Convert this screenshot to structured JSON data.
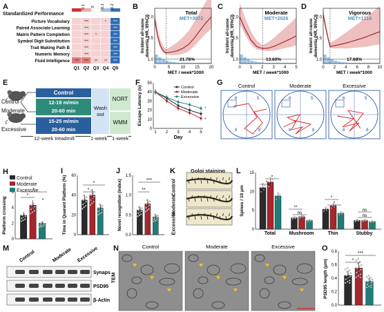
{
  "panels": {
    "A": {
      "label": "A",
      "title": "Standardized Performance",
      "rows": [
        "Picture Vocabulary",
        "Paired Associate Learning",
        "Matrix Pattern Completion",
        "Symbol Digit Substitution",
        "Trail Making Path B",
        "Numeric Memory",
        "Fluid Intelligence"
      ],
      "cols": [
        "Q1",
        "Q2",
        "Q3",
        "Q4",
        "Q5"
      ],
      "cells": [
        [
          "pink",
          "pink",
          "pink",
          "pink",
          "blue"
        ],
        [
          "pink",
          "pink",
          "pink",
          "pink",
          "blue"
        ],
        [
          "pink",
          "pink",
          "pink",
          "pink",
          "blue"
        ],
        [
          "pink",
          "pink",
          "pink",
          "pink",
          "blue"
        ],
        [
          "pink",
          "pink",
          "pink",
          "pink",
          "blue"
        ],
        [
          "pink",
          "pink",
          "pink",
          "pink",
          "blue"
        ],
        [
          "red",
          "red",
          "pink",
          "pink",
          "blue"
        ]
      ],
      "stars": [
        [
          "",
          "***",
          "",
          "*",
          "***"
        ],
        [
          "",
          "***",
          "",
          "",
          "***"
        ],
        [
          "",
          "***",
          "*",
          "",
          "***"
        ],
        [
          "",
          "***",
          "",
          "",
          "***"
        ],
        [
          "",
          "***",
          "",
          "",
          "***"
        ],
        [
          "",
          "***",
          "",
          "",
          "***"
        ],
        [
          "***",
          "***",
          "**",
          "**",
          "***"
        ]
      ],
      "legend_ticks": [
        "0.1",
        "0",
        "-0.1",
        "-0.2"
      ]
    },
    "B": {
      "label": "B",
      "title": "Total",
      "met": "MET=3972",
      "pct": "21.76%",
      "ylabel": "Incident all-cause dementia (HR, 95%CI)",
      "xlabel": "MET / week*1000",
      "xticks": [
        "0",
        "5",
        "10",
        "15",
        "20"
      ],
      "yticks": [
        "1.0",
        "1.5",
        "2.0"
      ]
    },
    "C": {
      "label": "C",
      "title": "Moderate",
      "met": "MET=2026",
      "pct": "13.60%",
      "ylabel": "Incident all-cause dementia (HR, 95%CI)",
      "xlabel": "MET / week*1000",
      "xticks": [
        "0",
        "1",
        "2",
        "3",
        "4",
        "5"
      ],
      "yticks": [
        "1.0",
        "1.5",
        "2.0"
      ]
    },
    "D": {
      "label": "D",
      "title": "Vigorous",
      "met": "MET=1216",
      "pct": "17.68%",
      "ylabel": "Incident all-cause dementia (HR, 95%CI)",
      "xlabel": "MET / week*1000",
      "xticks": [
        "0",
        "2",
        "4",
        "6",
        "8",
        "10"
      ],
      "yticks": [
        "1.0",
        "1.5",
        "2.0"
      ]
    },
    "E": {
      "label": "E",
      "groups": [
        "Control",
        "Moderate",
        "Excessive"
      ],
      "boxes": [
        "Control",
        "12-18 m/min",
        "20-60 min",
        "15-25 m/min",
        "20-60 min"
      ],
      "washout": "Wash out",
      "nort": "NORT",
      "wmm": "WMM",
      "timeline": [
        "12-week treadmill",
        "1-week",
        "1-week"
      ]
    },
    "F": {
      "label": "F",
      "ylabel": "Escape Latency (s)",
      "xlabel": "Day",
      "xticks": [
        "1",
        "2",
        "3",
        "4",
        "5"
      ],
      "yticks": [
        "0",
        "10",
        "20",
        "30",
        "40",
        "50"
      ],
      "legend": [
        "Control",
        "Moderate",
        "Excessive"
      ],
      "stars": [
        "*",
        "*"
      ]
    },
    "G": {
      "label": "G",
      "titles": [
        "Control",
        "Moderate",
        "Excessive"
      ]
    },
    "H": {
      "label": "H",
      "ylabel": "Platform crossing",
      "legend": [
        "Control",
        "Moderate",
        "Excessive"
      ],
      "yticks": [
        "0",
        "2",
        "4",
        "6"
      ],
      "stars": [
        "*",
        "*",
        "*"
      ]
    },
    "I": {
      "label": "I",
      "ylabel": "Time in Quarant Platform (%)",
      "yticks": [
        "0",
        "20",
        "40",
        "60"
      ],
      "stars": [
        "*",
        "*"
      ]
    },
    "J": {
      "label": "J",
      "ylabel": "Novel recognition (index)",
      "yticks": [
        "0.0",
        "0.5",
        "1.0",
        "1.5"
      ],
      "stars": [
        "**",
        "***"
      ]
    },
    "K": {
      "label": "K",
      "title": "Golgi staining",
      "rows": [
        "Control",
        "Moderate",
        "Excessive"
      ]
    },
    "L": {
      "label": "L",
      "ylabel": "Spines / 10 μm",
      "yticks": [
        "0",
        "5",
        "10",
        "15"
      ],
      "cats": [
        "Total",
        "Mushroom",
        "Thin",
        "Stubby"
      ],
      "stars": [
        "*",
        "*",
        "**",
        "ns",
        "*",
        "*",
        "ns",
        "ns"
      ]
    },
    "M": {
      "label": "M",
      "cols": [
        "Control",
        "Moderate",
        "Excessive"
      ],
      "bands": [
        "Synapsin",
        "PSD95",
        "β-Actin"
      ]
    },
    "N": {
      "label": "N",
      "titles": [
        "Control",
        "Moderate",
        "Excessive"
      ],
      "side": "TEM"
    },
    "O": {
      "label": "O",
      "ylabel": "PSD95 length (μm)",
      "yticks": [
        "0.0",
        "0.2",
        "0.4",
        "0.6",
        "0.8"
      ],
      "stars": [
        "*",
        "***"
      ]
    }
  },
  "chart_data": [
    {
      "type": "heatmap",
      "title": "Standardized Performance",
      "rows": [
        "Picture Vocabulary",
        "Paired Associate Learning",
        "Matrix Pattern Completion",
        "Symbol Digit Substitution",
        "Trail Making Path B",
        "Numeric Memory",
        "Fluid Intelligence"
      ],
      "columns": [
        "Q1",
        "Q2",
        "Q3",
        "Q4",
        "Q5"
      ],
      "color_range": [
        -0.2,
        0.1
      ]
    },
    {
      "type": "area",
      "title": "Total",
      "xlabel": "MET / week*1000",
      "ylabel": "Incident all-cause dementia (HR, 95%CI)",
      "x": [
        0,
        1,
        2,
        3,
        3.972,
        6,
        8,
        10,
        12,
        14,
        16,
        18,
        20
      ],
      "y": [
        1.95,
        1.55,
        1.32,
        1.2,
        1.15,
        1.17,
        1.2,
        1.26,
        1.35,
        1.5,
        1.68,
        1.85,
        2.0
      ],
      "vline": 3.972,
      "xlim": [
        0,
        20
      ],
      "ylim": [
        0.9,
        2.2
      ]
    },
    {
      "type": "area",
      "title": "Moderate",
      "xlabel": "MET / week*1000",
      "ylabel": "Incident all-cause dementia (HR, 95%CI)",
      "x": [
        0,
        0.5,
        1,
        1.5,
        2.026,
        2.5,
        3,
        3.5,
        4,
        4.5,
        5
      ],
      "y": [
        2.0,
        1.7,
        1.45,
        1.3,
        1.25,
        1.26,
        1.3,
        1.36,
        1.42,
        1.48,
        1.55
      ],
      "vline": 2.026,
      "xlim": [
        0,
        5
      ],
      "ylim": [
        0.9,
        2.2
      ]
    },
    {
      "type": "area",
      "title": "Vigorous",
      "xlabel": "MET / week*1000",
      "ylabel": "Incident all-cause dementia (HR, 95%CI)",
      "x": [
        0,
        0.5,
        1,
        1.216,
        2,
        3,
        4,
        5,
        6,
        7,
        8,
        9,
        10
      ],
      "y": [
        2.05,
        1.7,
        1.4,
        1.3,
        1.32,
        1.35,
        1.38,
        1.42,
        1.46,
        1.5,
        1.55,
        1.6,
        1.65
      ],
      "vline": 1.216,
      "xlim": [
        0,
        10
      ],
      "ylim": [
        0.9,
        2.2
      ]
    },
    {
      "type": "line",
      "xlabel": "Day",
      "ylabel": "Escape Latency (s)",
      "x": [
        1,
        2,
        3,
        4,
        5
      ],
      "series": [
        {
          "name": "Control",
          "values": [
            40,
            33,
            25,
            20,
            16
          ]
        },
        {
          "name": "Moderate",
          "values": [
            40,
            30,
            22,
            17,
            11
          ]
        },
        {
          "name": "Excessive",
          "values": [
            40,
            34,
            29,
            26,
            22
          ]
        }
      ],
      "ylim": [
        0,
        50
      ]
    },
    {
      "type": "bar",
      "ylabel": "Platform crossing",
      "categories": [
        "Control",
        "Moderate",
        "Excessive"
      ],
      "values": [
        3.0,
        4.3,
        2.0
      ],
      "ylim": [
        0,
        6
      ]
    },
    {
      "type": "bar",
      "ylabel": "Time in Quarant Platform (%)",
      "categories": [
        "Control",
        "Moderate",
        "Excessive"
      ],
      "values": [
        35,
        40,
        27
      ],
      "ylim": [
        0,
        60
      ]
    },
    {
      "type": "bar",
      "ylabel": "Novel recognition (index)",
      "categories": [
        "Control",
        "Moderate",
        "Excessive"
      ],
      "values": [
        0.62,
        0.78,
        0.45
      ],
      "ylim": [
        0,
        1.5
      ]
    },
    {
      "type": "bar",
      "ylabel": "Spines / 10 μm",
      "categories": [
        "Total",
        "Mushroom",
        "Thin",
        "Stubby"
      ],
      "series": [
        {
          "name": "Control",
          "values": [
            11,
            3,
            5.3,
            2.3
          ]
        },
        {
          "name": "Moderate",
          "values": [
            12.5,
            3.3,
            6.2,
            2.3
          ]
        },
        {
          "name": "Excessive",
          "values": [
            8.8,
            2.3,
            4.2,
            2.0
          ]
        }
      ],
      "ylim": [
        0,
        15
      ]
    },
    {
      "type": "bar",
      "ylabel": "PSD95 length (μm)",
      "categories": [
        "Control",
        "Moderate",
        "Excessive"
      ],
      "values": [
        0.44,
        0.55,
        0.35
      ],
      "ylim": [
        0,
        0.8
      ]
    }
  ],
  "colors": {
    "control": "#2b2b2b",
    "moderate": "#a5262c",
    "excessive": "#1f7d78",
    "box_blue": "#2a5f9e",
    "box_green": "#2e8b7a"
  }
}
